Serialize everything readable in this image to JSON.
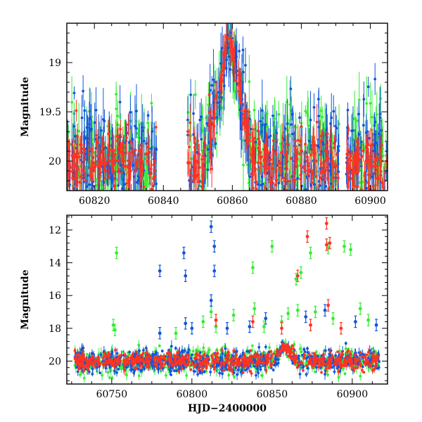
{
  "chart_data": [
    {
      "type": "scatter",
      "panel": "top",
      "title": "",
      "xlabel": "",
      "ylabel": "Magnitude",
      "xlim": [
        60812,
        60905
      ],
      "ylim": [
        20.3,
        18.6
      ],
      "y_inverted": true,
      "xticks": [
        60820,
        60840,
        60860,
        60880,
        60900
      ],
      "yticks": [
        19,
        19.5,
        20
      ],
      "xtick_labels": [
        "60820",
        "60840",
        "60860",
        "60880",
        "60900"
      ],
      "ytick_labels": [
        "19",
        "19.5",
        "20"
      ],
      "error_bars": true,
      "dense_intervals": [
        [
          60812,
          60838
        ],
        [
          60847,
          60891
        ],
        [
          60893,
          60905
        ]
      ],
      "series": [
        {
          "color": "#33ee33",
          "baseline_mag": 20.0,
          "scatter_mag": 0.28,
          "peak_x": 60859,
          "peak_mag": 18.78,
          "peak_halfwidth": 7
        },
        {
          "color": "#1155dd",
          "baseline_mag": 20.0,
          "scatter_mag": 0.3,
          "peak_x": 60859,
          "peak_mag": 18.78,
          "peak_halfwidth": 7
        },
        {
          "color": "#ff3322",
          "baseline_mag": 20.02,
          "scatter_mag": 0.16,
          "peak_x": 60859,
          "peak_mag": 18.72,
          "peak_halfwidth": 7
        }
      ]
    },
    {
      "type": "scatter",
      "panel": "bottom",
      "title": "",
      "xlabel": "HJD−2400000",
      "ylabel": "Magnitude",
      "xlim": [
        60722,
        60922
      ],
      "ylim": [
        21.4,
        11.1
      ],
      "y_inverted": true,
      "xticks": [
        60750,
        60800,
        60850,
        60900
      ],
      "yticks": [
        12,
        14,
        16,
        18,
        20
      ],
      "xtick_labels": [
        "60750",
        "60800",
        "60850",
        "60900"
      ],
      "ytick_labels": [
        "12",
        "14",
        "16",
        "18",
        "20"
      ],
      "error_bars": true,
      "dense_interval": [
        60727,
        60917
      ],
      "series": [
        {
          "color": "#33ee33",
          "baseline_mag": 20.0,
          "scatter_mag": 0.35,
          "peak_x": 60858,
          "peak_mag": 19.1,
          "peak_halfwidth": 8
        },
        {
          "color": "#1155dd",
          "baseline_mag": 20.0,
          "scatter_mag": 0.35,
          "peak_x": 60858,
          "peak_mag": 19.1,
          "peak_halfwidth": 8
        },
        {
          "color": "#ff3322",
          "baseline_mag": 20.0,
          "scatter_mag": 0.25,
          "peak_x": 60858,
          "peak_mag": 19.05,
          "peak_halfwidth": 8
        }
      ],
      "outliers": [
        {
          "series": 0,
          "points": [
            [
              60753,
              13.4
            ],
            [
              60751,
              17.8
            ],
            [
              60752,
              18.1
            ],
            [
              60790,
              18.3
            ],
            [
              60807,
              17.6
            ],
            [
              60812,
              17.0
            ],
            [
              60815,
              17.9
            ],
            [
              60826,
              17.2
            ],
            [
              60838,
              14.3
            ],
            [
              60839,
              16.8
            ],
            [
              60850,
              13.0
            ],
            [
              60856,
              17.6
            ],
            [
              60860,
              17.1
            ],
            [
              60865,
              15.0
            ],
            [
              60868,
              14.6
            ],
            [
              60874,
              13.4
            ],
            [
              60877,
              17.0
            ],
            [
              60885,
              13.1
            ],
            [
              60888,
              17.4
            ],
            [
              60895,
              13.0
            ],
            [
              60899,
              13.2
            ],
            [
              60905,
              16.8
            ],
            [
              60910,
              17.5
            ],
            [
              60866,
              16.9
            ],
            [
              60845,
              17.9
            ]
          ]
        },
        {
          "series": 1,
          "points": [
            [
              60780,
              14.5
            ],
            [
              60795,
              13.4
            ],
            [
              60796,
              14.8
            ],
            [
              60812,
              11.8
            ],
            [
              60814,
              13.0
            ],
            [
              60814,
              14.5
            ],
            [
              60812,
              16.3
            ],
            [
              60796,
              17.7
            ],
            [
              60800,
              18.0
            ],
            [
              60836,
              17.9
            ],
            [
              60846,
              17.4
            ],
            [
              60871,
              17.3
            ],
            [
              60883,
              16.9
            ],
            [
              60902,
              17.6
            ],
            [
              60915,
              17.8
            ],
            [
              60822,
              18.0
            ],
            [
              60780,
              18.3
            ]
          ]
        },
        {
          "series": 2,
          "points": [
            [
              60872,
              12.4
            ],
            [
              60884,
              11.6
            ],
            [
              60884,
              12.9
            ],
            [
              60886,
              12.8
            ],
            [
              60866,
              14.8
            ],
            [
              60885,
              16.6
            ],
            [
              60815,
              17.5
            ],
            [
              60838,
              17.6
            ],
            [
              60856,
              18.0
            ],
            [
              60893,
              18.0
            ],
            [
              60874,
              17.8
            ]
          ]
        }
      ]
    }
  ]
}
